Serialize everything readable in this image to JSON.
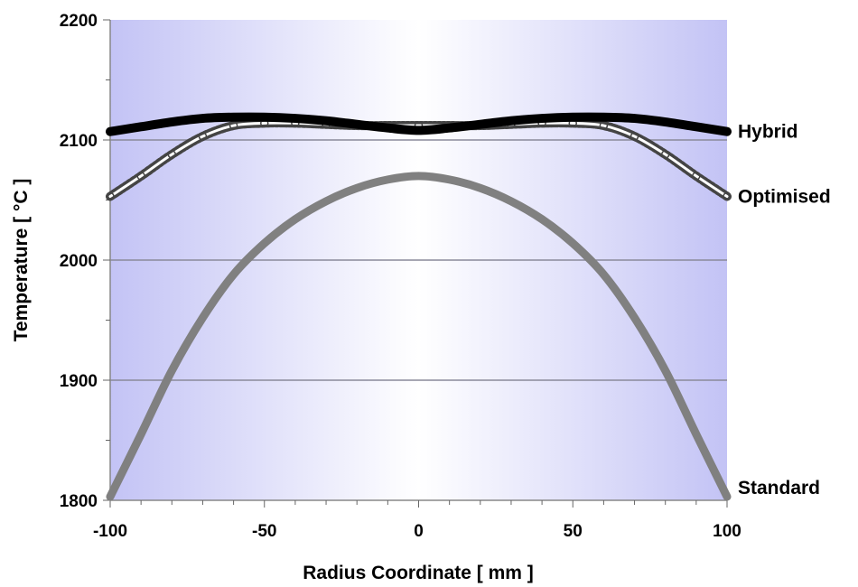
{
  "chart_data": {
    "type": "line",
    "title": "",
    "xlabel": "Radius Coordinate  [ mm ]",
    "ylabel": "Temperature  [ °C ]",
    "xlim": [
      -100,
      100
    ],
    "ylim": [
      1800,
      2200
    ],
    "xticks": [
      -100,
      -50,
      0,
      50,
      100
    ],
    "yticks": [
      1800,
      1900,
      2000,
      2100,
      2200
    ],
    "xtick_labels": [
      "-100",
      "-50",
      "0",
      "50",
      "100"
    ],
    "ytick_labels": [
      "1800",
      "1900",
      "2000",
      "2100",
      "2200"
    ],
    "grid": "horizontal",
    "legend": "none",
    "background_gradient": {
      "edge": "#c3c3f5",
      "center": "#ffffff"
    },
    "series": [
      {
        "name": "Hybrid",
        "color": "#000000",
        "style": "thick-solid",
        "x": [
          -100,
          -90,
          -80,
          -70,
          -60,
          -50,
          -40,
          -30,
          -20,
          -10,
          0,
          10,
          20,
          30,
          40,
          50,
          60,
          70,
          80,
          90,
          100
        ],
        "y": [
          2107,
          2111,
          2115,
          2118,
          2119,
          2119,
          2118,
          2116,
          2113,
          2110,
          2108,
          2110,
          2113,
          2116,
          2118,
          2119,
          2119,
          2118,
          2115,
          2111,
          2107
        ]
      },
      {
        "name": "Optimised",
        "color": "#444444",
        "style": "hollow-markers",
        "x": [
          -100,
          -90,
          -80,
          -70,
          -60,
          -50,
          -40,
          -30,
          -20,
          -10,
          0,
          10,
          20,
          30,
          40,
          50,
          60,
          70,
          80,
          90,
          100
        ],
        "y": [
          2053,
          2070,
          2088,
          2103,
          2112,
          2114,
          2114,
          2113,
          2112,
          2112,
          2112,
          2112,
          2112,
          2113,
          2114,
          2114,
          2112,
          2103,
          2088,
          2070,
          2053
        ]
      },
      {
        "name": "Standard",
        "color": "#808080",
        "style": "thick-solid",
        "x": [
          -100,
          -90,
          -80,
          -70,
          -60,
          -50,
          -40,
          -30,
          -20,
          -10,
          0,
          10,
          20,
          30,
          40,
          50,
          60,
          70,
          80,
          90,
          100
        ],
        "y": [
          1803,
          1855,
          1908,
          1952,
          1988,
          2014,
          2034,
          2049,
          2060,
          2067,
          2070,
          2067,
          2060,
          2049,
          2034,
          2014,
          1988,
          1952,
          1908,
          1855,
          1803
        ]
      }
    ]
  }
}
